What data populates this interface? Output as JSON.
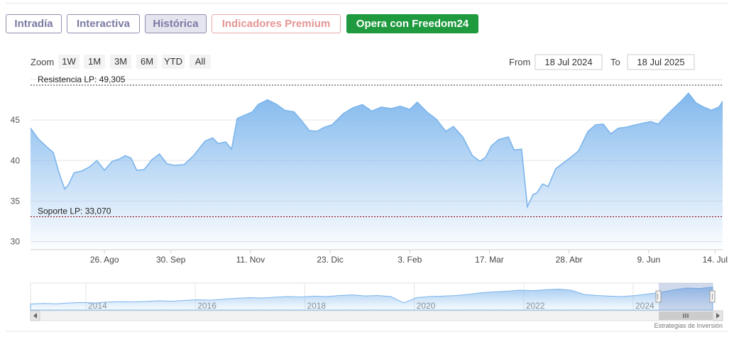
{
  "tabs": [
    {
      "label": "Intradía",
      "state": "normal"
    },
    {
      "label": "Interactiva",
      "state": "normal"
    },
    {
      "label": "Histórica",
      "state": "active"
    },
    {
      "label": "Indicadores Premium",
      "state": "premium"
    },
    {
      "label": "Opera con Freedom24",
      "state": "cta"
    }
  ],
  "range_selector": {
    "zoom_label": "Zoom",
    "buttons": [
      "1W",
      "1M",
      "3M",
      "6M",
      "YTD",
      "All"
    ],
    "from_label": "From",
    "from_value": "18 Jul 2024",
    "to_label": "To",
    "to_value": "18 Jul 2025"
  },
  "credit": "Estrategias de Inversión",
  "colors": {
    "series_line": "#7cb5ec",
    "area_top": "#7cb5ec",
    "resistance_line": "#333333",
    "support_line": "#8b0000",
    "tab_border": "#8e8db2",
    "premium": "#e59595",
    "freedom_bg": "#1f9a3f"
  },
  "chart_data": {
    "type": "area",
    "x_unit": "date",
    "ylim": [
      29,
      50
    ],
    "y_ticks": [
      30,
      35,
      40,
      45
    ],
    "x_ticks": [
      {
        "label": "26. Ago",
        "date": "2024-08-26"
      },
      {
        "label": "30. Sep",
        "date": "2024-09-30"
      },
      {
        "label": "11. Nov",
        "date": "2024-11-11"
      },
      {
        "label": "23. Dic",
        "date": "2024-12-23"
      },
      {
        "label": "3. Feb",
        "date": "2025-02-03"
      },
      {
        "label": "17. Mar",
        "date": "2025-03-17"
      },
      {
        "label": "28. Abr",
        "date": "2025-04-28"
      },
      {
        "label": "9. Jun",
        "date": "2025-06-09"
      },
      {
        "label": "14. Jul",
        "date": "2025-07-14"
      }
    ],
    "grid": true,
    "levels": [
      {
        "label": "Resistencia LP: 49,305",
        "value": 49.305
      },
      {
        "label": "Soporte LP: 33,070",
        "value": 33.07
      }
    ],
    "series": [
      {
        "x": [
          "2024-07-18",
          "2024-07-22",
          "2024-07-26",
          "2024-07-30",
          "2024-08-02",
          "2024-08-05",
          "2024-08-07",
          "2024-08-10",
          "2024-08-14",
          "2024-08-18",
          "2024-08-22",
          "2024-08-26",
          "2024-08-30",
          "2024-09-03",
          "2024-09-06",
          "2024-09-09",
          "2024-09-12",
          "2024-09-16",
          "2024-09-20",
          "2024-09-24",
          "2024-09-28",
          "2024-10-02",
          "2024-10-07",
          "2024-10-12",
          "2024-10-18",
          "2024-10-22",
          "2024-10-25",
          "2024-10-29",
          "2024-11-01",
          "2024-11-04",
          "2024-11-08",
          "2024-11-12",
          "2024-11-15",
          "2024-11-20",
          "2024-11-25",
          "2024-11-29",
          "2024-12-04",
          "2024-12-08",
          "2024-12-12",
          "2024-12-16",
          "2024-12-20",
          "2024-12-24",
          "2024-12-30",
          "2025-01-04",
          "2025-01-09",
          "2025-01-14",
          "2025-01-19",
          "2025-01-24",
          "2025-01-29",
          "2025-02-03",
          "2025-02-07",
          "2025-02-12",
          "2025-02-17",
          "2025-02-22",
          "2025-02-26",
          "2025-03-03",
          "2025-03-08",
          "2025-03-12",
          "2025-03-15",
          "2025-03-18",
          "2025-03-22",
          "2025-03-27",
          "2025-03-30",
          "2025-04-03",
          "2025-04-06",
          "2025-04-09",
          "2025-04-11",
          "2025-04-14",
          "2025-04-17",
          "2025-04-21",
          "2025-04-25",
          "2025-04-29",
          "2025-05-03",
          "2025-05-08",
          "2025-05-12",
          "2025-05-16",
          "2025-05-20",
          "2025-05-24",
          "2025-05-28",
          "2025-06-02",
          "2025-06-06",
          "2025-06-10",
          "2025-06-14",
          "2025-06-18",
          "2025-06-22",
          "2025-06-26",
          "2025-06-30",
          "2025-07-04",
          "2025-07-08",
          "2025-07-12",
          "2025-07-16",
          "2025-07-18"
        ],
        "values": [
          44.0,
          42.7,
          41.8,
          41.0,
          38.5,
          36.5,
          37.0,
          38.5,
          38.7,
          39.2,
          40.0,
          38.8,
          39.9,
          40.2,
          40.6,
          40.3,
          38.8,
          38.9,
          40.1,
          40.8,
          39.6,
          39.4,
          39.5,
          40.6,
          42.4,
          42.8,
          42.1,
          42.3,
          41.4,
          45.2,
          45.6,
          46.0,
          46.9,
          47.5,
          46.9,
          46.2,
          46.0,
          44.9,
          43.7,
          43.6,
          44.1,
          44.4,
          45.8,
          46.5,
          46.9,
          46.1,
          46.6,
          46.4,
          46.7,
          46.3,
          47.2,
          46.0,
          45.1,
          43.6,
          44.2,
          42.9,
          40.6,
          39.9,
          40.4,
          41.8,
          42.6,
          42.9,
          41.3,
          41.4,
          34.3,
          35.8,
          36.0,
          37.1,
          36.8,
          39.0,
          39.7,
          40.4,
          41.2,
          43.6,
          44.4,
          44.5,
          43.3,
          44.0,
          44.1,
          44.4,
          44.6,
          44.8,
          44.5,
          45.5,
          46.4,
          47.3,
          48.3,
          47.1,
          46.6,
          46.2,
          46.6,
          47.3
        ]
      }
    ]
  },
  "navigator": {
    "tick_labels": [
      "2014",
      "2016",
      "2018",
      "2020",
      "2022",
      "2024"
    ]
  }
}
